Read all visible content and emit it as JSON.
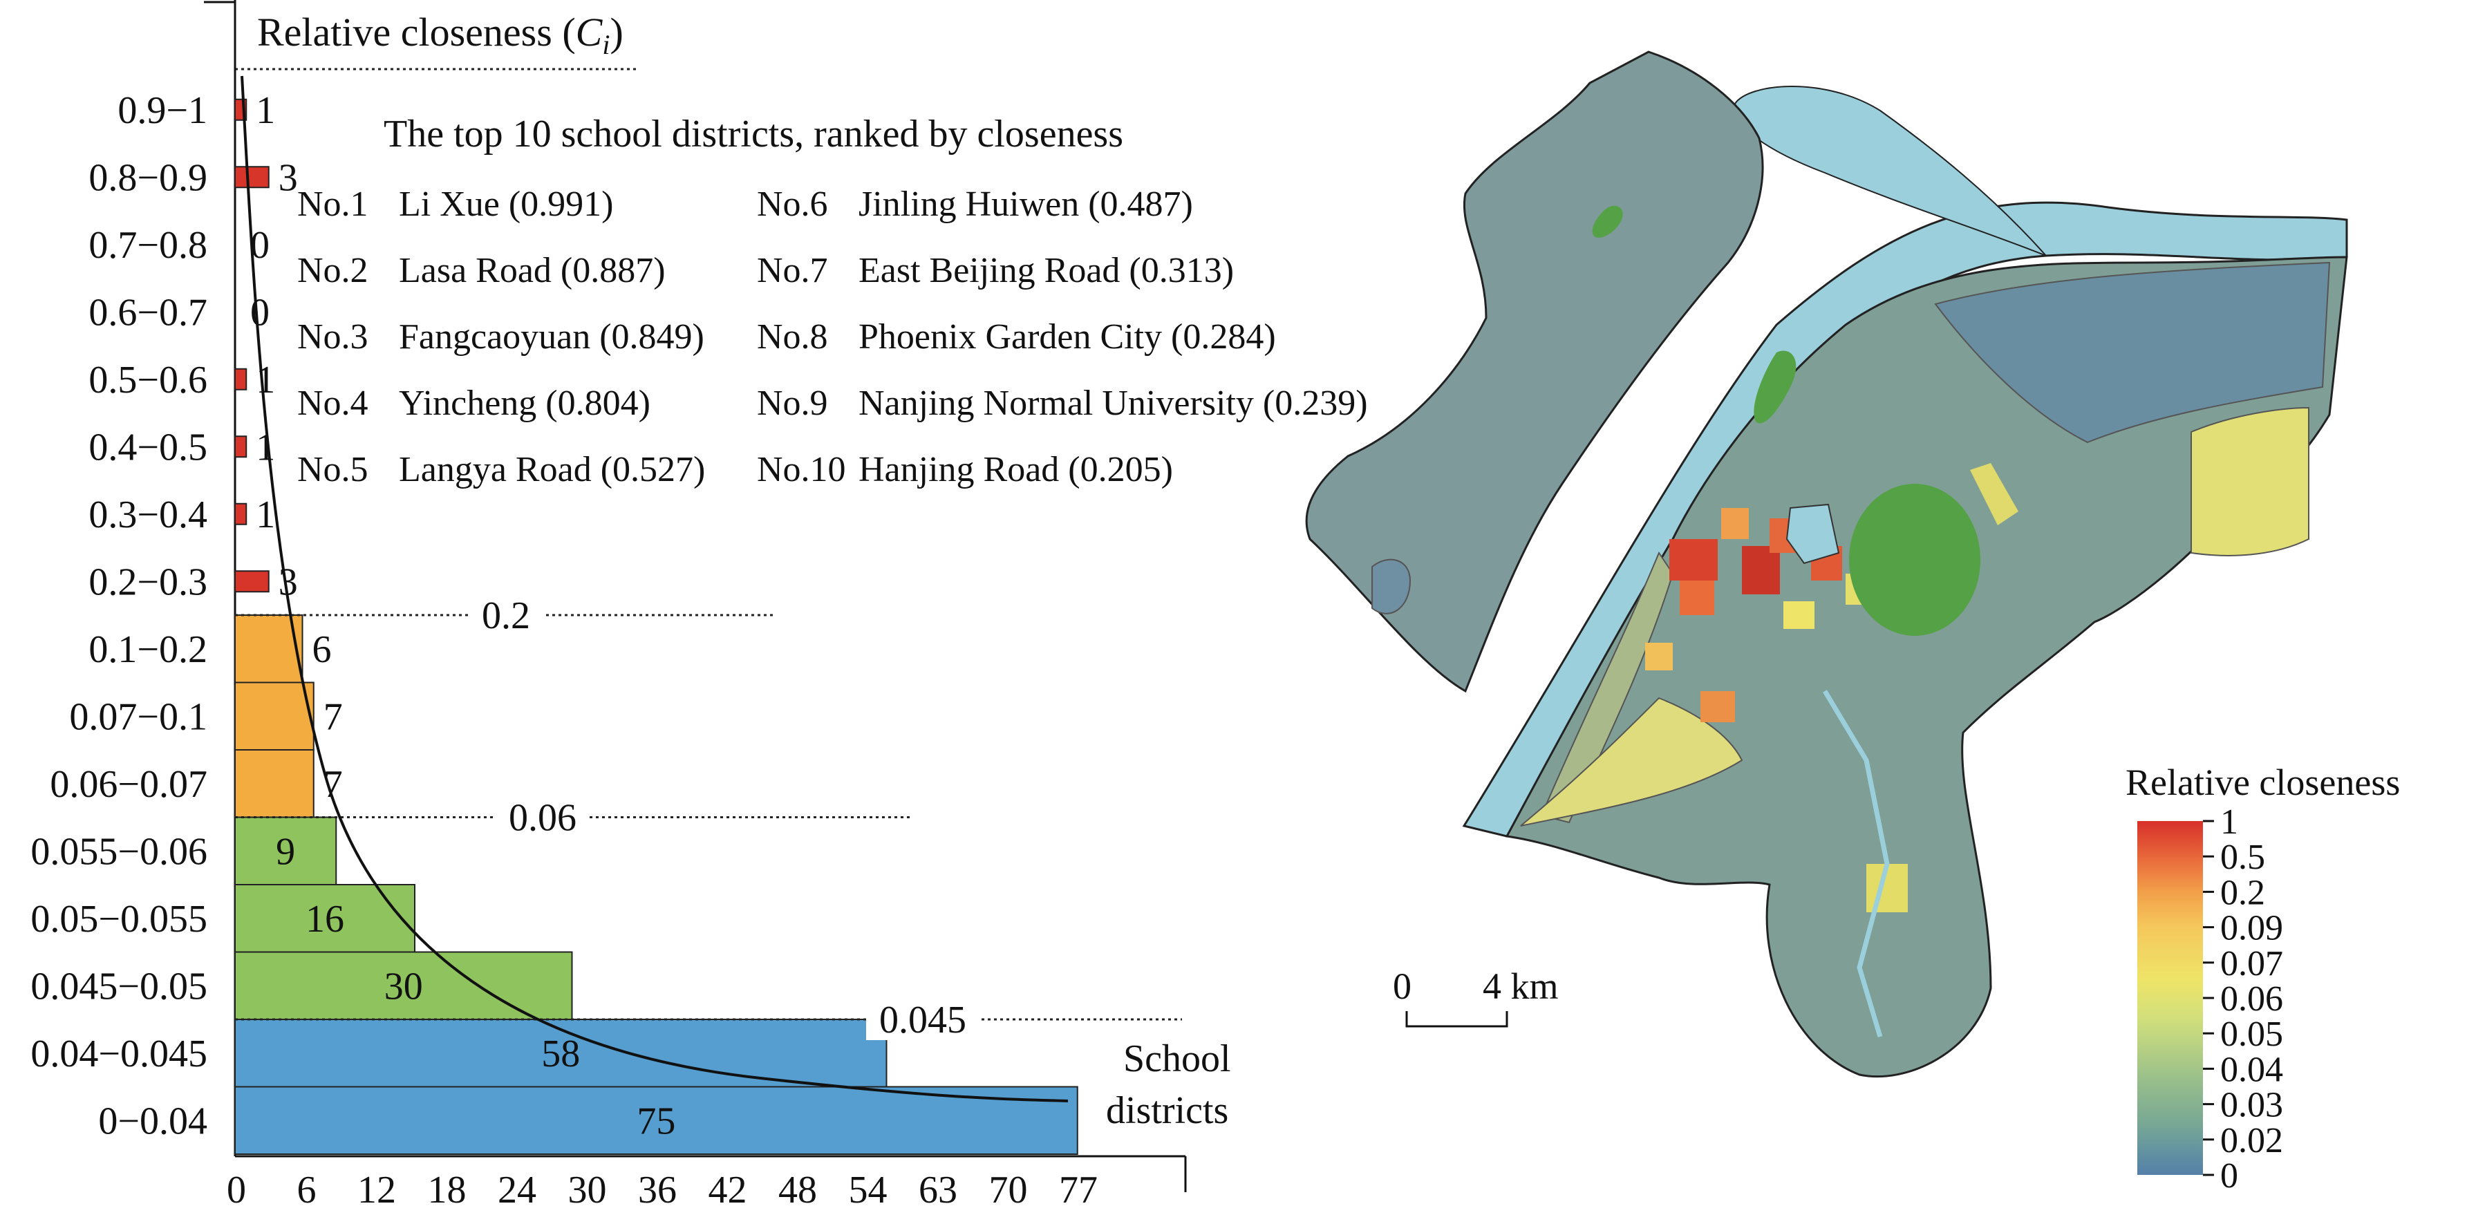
{
  "chart_data": [
    {
      "type": "bar",
      "orientation": "horizontal",
      "title": "Relative closeness (Ci)",
      "title_main": "Relative closeness (",
      "title_var": "C",
      "title_sub": "i",
      "title_close": ")",
      "xlabel_line1": "School",
      "xlabel_line2": "districts",
      "categories": [
        "0.9−1",
        "0.8−0.9",
        "0.7−0.8",
        "0.6−0.7",
        "0.5−0.6",
        "0.4−0.5",
        "0.3−0.4",
        "0.2−0.3",
        "0.1−0.2",
        "0.07−0.1",
        "0.06−0.07",
        "0.055−0.06",
        "0.05−0.055",
        "0.045−0.05",
        "0.04−0.045",
        "0−0.04"
      ],
      "values": [
        1,
        3,
        0,
        0,
        1,
        1,
        1,
        3,
        6,
        7,
        7,
        9,
        16,
        30,
        58,
        75
      ],
      "value_labels": [
        "1",
        "3",
        "0",
        "0",
        "1",
        "1",
        "1",
        "3",
        "6",
        "7",
        "7",
        "9",
        "16",
        "30",
        "58",
        "75"
      ],
      "bar_colors": [
        "#d7352a",
        "#d7352a",
        "#d7352a",
        "#d7352a",
        "#d7352a",
        "#d7352a",
        "#d7352a",
        "#d7352a",
        "#f3ac3f",
        "#f3ac3f",
        "#f3ac3f",
        "#8fc35d",
        "#8fc35d",
        "#8fc35d",
        "#559ecf",
        "#559ecf"
      ],
      "xticks": [
        "0",
        "6",
        "12",
        "18",
        "24",
        "30",
        "36",
        "42",
        "48",
        "54",
        "63",
        "70",
        "77"
      ],
      "thresholds": [
        {
          "label": "0.2",
          "after_category": 7
        },
        {
          "label": "0.06",
          "after_category": 10
        },
        {
          "label": "0.045",
          "after_category": 13
        }
      ],
      "curve": "smooth fitted curve through the histogram",
      "annotation_title": "The top 10 school districts, ranked by closeness",
      "ranking": [
        {
          "rank": "No.1",
          "name": "Li Xue",
          "value": "(0.991)"
        },
        {
          "rank": "No.2",
          "name": "Lasa Road",
          "value": "(0.887)"
        },
        {
          "rank": "No.3",
          "name": "Fangcaoyuan",
          "value": "(0.849)"
        },
        {
          "rank": "No.4",
          "name": "Yincheng",
          "value": "(0.804)"
        },
        {
          "rank": "No.5",
          "name": "Langya Road",
          "value": "(0.527)"
        },
        {
          "rank": "No.6",
          "name": "Jinling Huiwen",
          "value": "(0.487)"
        },
        {
          "rank": "No.7",
          "name": "East Beijing Road",
          "value": "(0.313)"
        },
        {
          "rank": "No.8",
          "name": "Phoenix Garden City",
          "value": "(0.284)"
        },
        {
          "rank": "No.9",
          "name": "Nanjing Normal University",
          "value": "(0.239)"
        },
        {
          "rank": "No.10",
          "name": "Hanjing Road",
          "value": "(0.205)"
        }
      ]
    },
    {
      "type": "heatmap",
      "subtype": "choropleth map",
      "legend_title": "Relative closeness",
      "legend_ticks": [
        "1",
        "0.5",
        "0.2",
        "0.09",
        "0.07",
        "0.06",
        "0.05",
        "0.04",
        "0.03",
        "0.02",
        "0"
      ],
      "legend_colors": [
        "#d7302a",
        "#e8663a",
        "#f29f4a",
        "#f5c85c",
        "#eee468",
        "#d4e07a",
        "#b4cf84",
        "#93bb8c",
        "#7aa994",
        "#6394a0",
        "#557fa8"
      ],
      "scale_bar": {
        "start": "0",
        "end": "4 km"
      },
      "colors": {
        "river": "#9ccfdc",
        "green_space": "#55a146",
        "district_base": "#7f9f96",
        "boundary": "#222222"
      }
    }
  ]
}
